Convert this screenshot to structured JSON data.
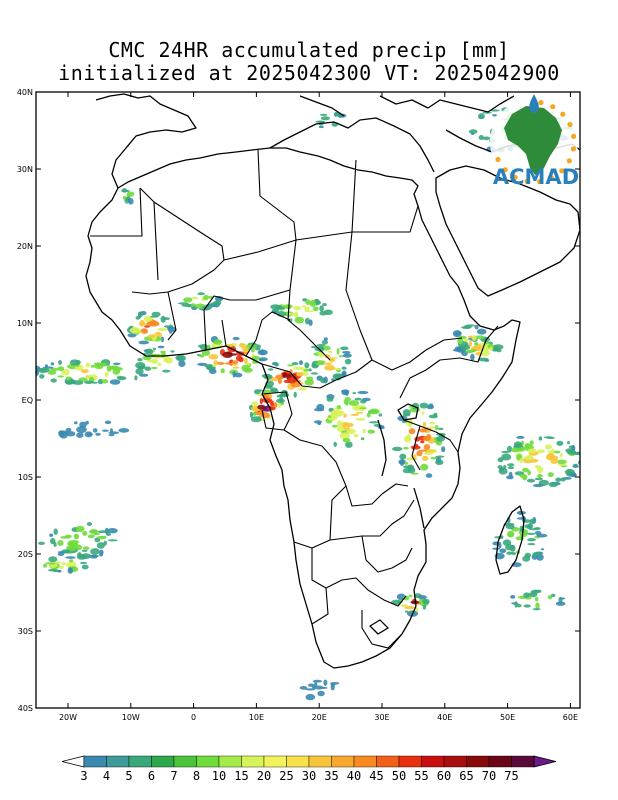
{
  "title": {
    "line1": "CMC 24HR accumulated precip [mm]",
    "line2": "initialized at 2025042300 VT: 2025042900"
  },
  "logo": {
    "text": "ACMAD",
    "colors": {
      "land": "#2e8b3a",
      "sea": "#2a7fb8",
      "rays": "#f5a623"
    }
  },
  "axes": {
    "lon_labels": [
      "20W",
      "10W",
      "0",
      "10E",
      "20E",
      "30E",
      "40E",
      "50E",
      "60E"
    ],
    "lat_labels": [
      "40N",
      "30N",
      "20N",
      "10N",
      "EQ",
      "10S",
      "20S",
      "30S",
      "40S"
    ]
  },
  "colorbar": {
    "labels": [
      "3",
      "4",
      "5",
      "6",
      "7",
      "8",
      "10",
      "15",
      "20",
      "25",
      "30",
      "35",
      "40",
      "45",
      "50",
      "55",
      "60",
      "65",
      "70",
      "75"
    ],
    "colors": [
      "#ffffff",
      "#3a8ab0",
      "#3f9a9a",
      "#3aa87c",
      "#2da84a",
      "#4cc43a",
      "#6fdc3c",
      "#a5ec4a",
      "#d8f25a",
      "#f2f25a",
      "#f8e04a",
      "#f8c53a",
      "#f8a82e",
      "#f88a22",
      "#f06018",
      "#e83010",
      "#c81010",
      "#a80e0e",
      "#880a0a",
      "#6a0616",
      "#5a0a3a",
      "#6a1a8a"
    ]
  },
  "precip": {
    "levels": [
      "#3a8ab0",
      "#3aa87c",
      "#6fdc3c",
      "#d8f25a",
      "#f8c53a",
      "#f88a22",
      "#e83010",
      "#880a0a",
      "#6a1a8a"
    ]
  }
}
